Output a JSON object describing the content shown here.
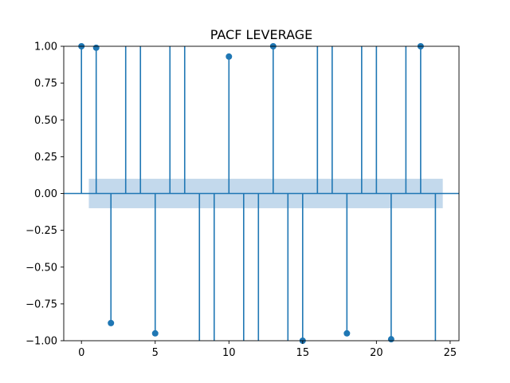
{
  "chart_data": {
    "type": "stem",
    "title": "PACF LEVERAGE",
    "xlabel": "",
    "ylabel": "",
    "xlim": [
      -1.2,
      25.6
    ],
    "ylim": [
      -1.0,
      1.0
    ],
    "x_ticks": [
      0,
      5,
      10,
      15,
      20,
      25
    ],
    "x_tick_labels": [
      "0",
      "5",
      "10",
      "15",
      "20",
      "25"
    ],
    "y_ticks": [
      -1.0,
      -0.75,
      -0.5,
      -0.25,
      0.0,
      0.25,
      0.5,
      0.75,
      1.0
    ],
    "y_tick_labels": [
      "−1.00",
      "−0.75",
      "−0.50",
      "−0.25",
      "0.00",
      "0.25",
      "0.50",
      "0.75",
      "1.00"
    ],
    "confidence_band": {
      "x_range": [
        0.5,
        24.5
      ],
      "lower": -0.1,
      "upper": 0.1,
      "color": "#c3d9ec"
    },
    "stem_color": "#1f77b4",
    "baseline_y": 0,
    "grid": false,
    "legend": "none",
    "x": [
      0,
      1,
      2,
      3,
      4,
      5,
      6,
      7,
      8,
      9,
      10,
      11,
      12,
      13,
      14,
      15,
      16,
      17,
      18,
      19,
      20,
      21,
      22,
      23,
      24
    ],
    "values": [
      1.0,
      0.99,
      -0.88,
      1.3,
      1.3,
      -0.95,
      1.3,
      1.3,
      -1.3,
      -1.3,
      0.93,
      -1.3,
      -1.3,
      1.0,
      -1.3,
      -1.0,
      1.3,
      1.3,
      -0.95,
      1.3,
      1.3,
      -0.99,
      1.3,
      1.0,
      -1.3
    ]
  }
}
